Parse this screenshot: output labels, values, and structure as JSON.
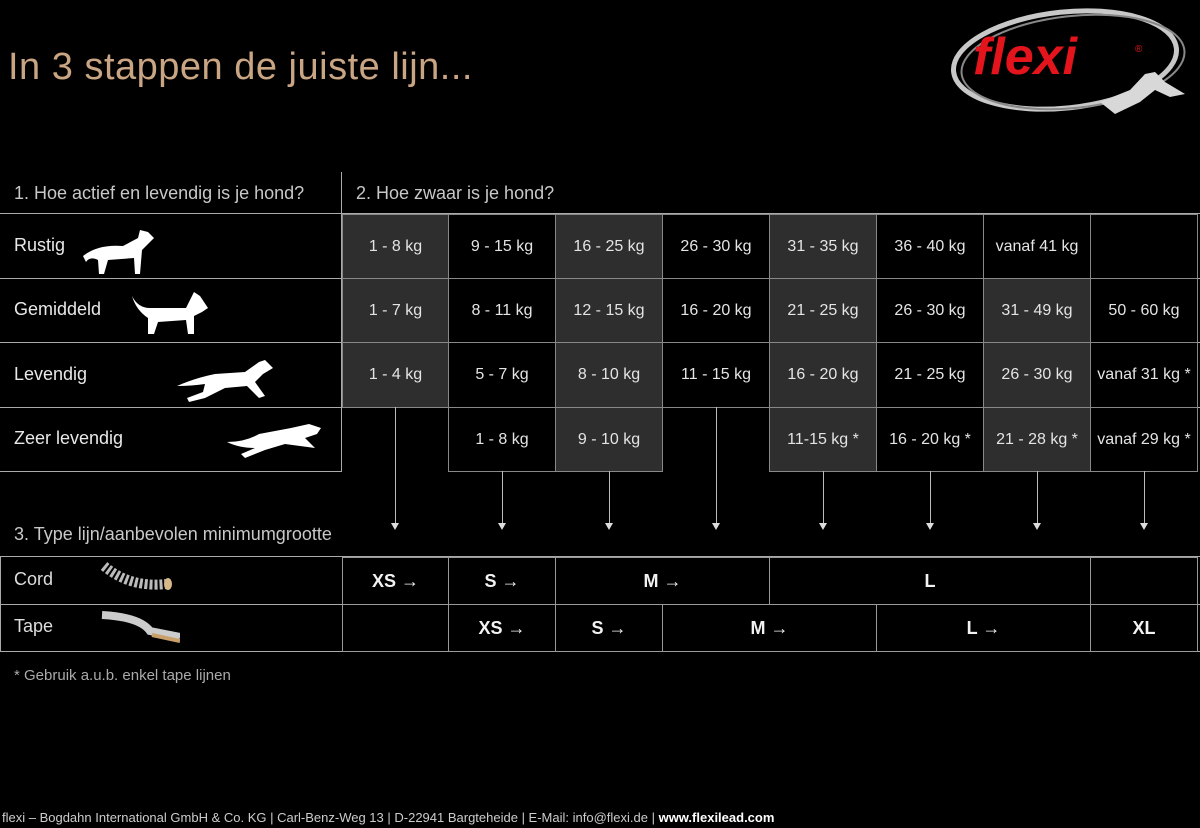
{
  "title": "In 3 stappen de juiste lijn...",
  "logo": {
    "text": "flexi",
    "registered": "®",
    "brand_color": "#e3141b"
  },
  "step1_header": "1. Hoe actief en levendig is je hond?",
  "step2_header": "2. Hoe zwaar is je hond?",
  "step3_header": "3. Type lijn/aanbevolen minimumgrootte",
  "activity_rows": [
    {
      "label": "Rustig",
      "icon": "standing-dog-icon",
      "cells": [
        {
          "text": "1 - 8 kg",
          "shaded": true
        },
        {
          "text": "9 - 15 kg",
          "shaded": false
        },
        {
          "text": "16 - 25 kg",
          "shaded": true
        },
        {
          "text": "26 - 30 kg",
          "shaded": false
        },
        {
          "text": "31 - 35 kg",
          "shaded": true
        },
        {
          "text": "36 - 40 kg",
          "shaded": false
        },
        {
          "text": "vanaf 41 kg",
          "shaded": false
        },
        {
          "text": "",
          "shaded": false
        }
      ]
    },
    {
      "label": "Gemiddeld",
      "icon": "walking-dog-icon",
      "cells": [
        {
          "text": "1 - 7 kg",
          "shaded": true
        },
        {
          "text": "8 - 11 kg",
          "shaded": false
        },
        {
          "text": "12 - 15 kg",
          "shaded": true
        },
        {
          "text": "16 - 20 kg",
          "shaded": false
        },
        {
          "text": "21 - 25 kg",
          "shaded": true
        },
        {
          "text": "26 - 30 kg",
          "shaded": false
        },
        {
          "text": "31 - 49 kg",
          "shaded": true
        },
        {
          "text": "50 - 60 kg",
          "shaded": false
        }
      ]
    },
    {
      "label": "Levendig",
      "icon": "running-dog-icon",
      "cells": [
        {
          "text": "1 - 4 kg",
          "shaded": true
        },
        {
          "text": "5 - 7 kg",
          "shaded": false
        },
        {
          "text": "8 - 10 kg",
          "shaded": true
        },
        {
          "text": "11 - 15 kg",
          "shaded": false
        },
        {
          "text": "16 - 20 kg",
          "shaded": true
        },
        {
          "text": "21 - 25 kg",
          "shaded": false
        },
        {
          "text": "26 - 30 kg",
          "shaded": true
        },
        {
          "text": "vanaf 31 kg *",
          "shaded": false
        }
      ]
    },
    {
      "label": "Zeer levendig",
      "icon": "sprinting-dog-icon",
      "cells": [
        null,
        {
          "text": "1 - 8 kg",
          "shaded": false
        },
        {
          "text": "9 - 10 kg",
          "shaded": true
        },
        null,
        {
          "text": "11-15 kg *",
          "shaded": true
        },
        {
          "text": "16 - 20 kg *",
          "shaded": false
        },
        {
          "text": "21 - 28 kg *",
          "shaded": true
        },
        {
          "text": "vanaf 29 kg *",
          "shaded": false
        }
      ]
    }
  ],
  "leash_rows": [
    {
      "label": "Cord",
      "icon": "cord-icon",
      "cells": [
        {
          "text": "XS →",
          "start": 1,
          "span": 1
        },
        {
          "text": "S →",
          "start": 2,
          "span": 1
        },
        {
          "text": "M →",
          "start": 3,
          "span": 2
        },
        {
          "text": "L",
          "start": 5,
          "span": 3
        },
        {
          "text": "",
          "start": 8,
          "span": 1
        }
      ]
    },
    {
      "label": "Tape",
      "icon": "tape-icon",
      "cells": [
        {
          "text": "",
          "start": 1,
          "span": 1
        },
        {
          "text": "XS →",
          "start": 2,
          "span": 1
        },
        {
          "text": "S →",
          "start": 3,
          "span": 1
        },
        {
          "text": "M →",
          "start": 4,
          "span": 2
        },
        {
          "text": "L →",
          "start": 6,
          "span": 2
        },
        {
          "text": "XL",
          "start": 8,
          "span": 1
        }
      ]
    }
  ],
  "note": "* Gebruik a.u.b. enkel tape lijnen",
  "footer": {
    "text": "flexi – Bogdahn International GmbH & Co. KG | Carl-Benz-Weg 13 | D-22941 Bargteheide | E-Mail: info@flexi.de | ",
    "website": "www.flexilead.com"
  }
}
